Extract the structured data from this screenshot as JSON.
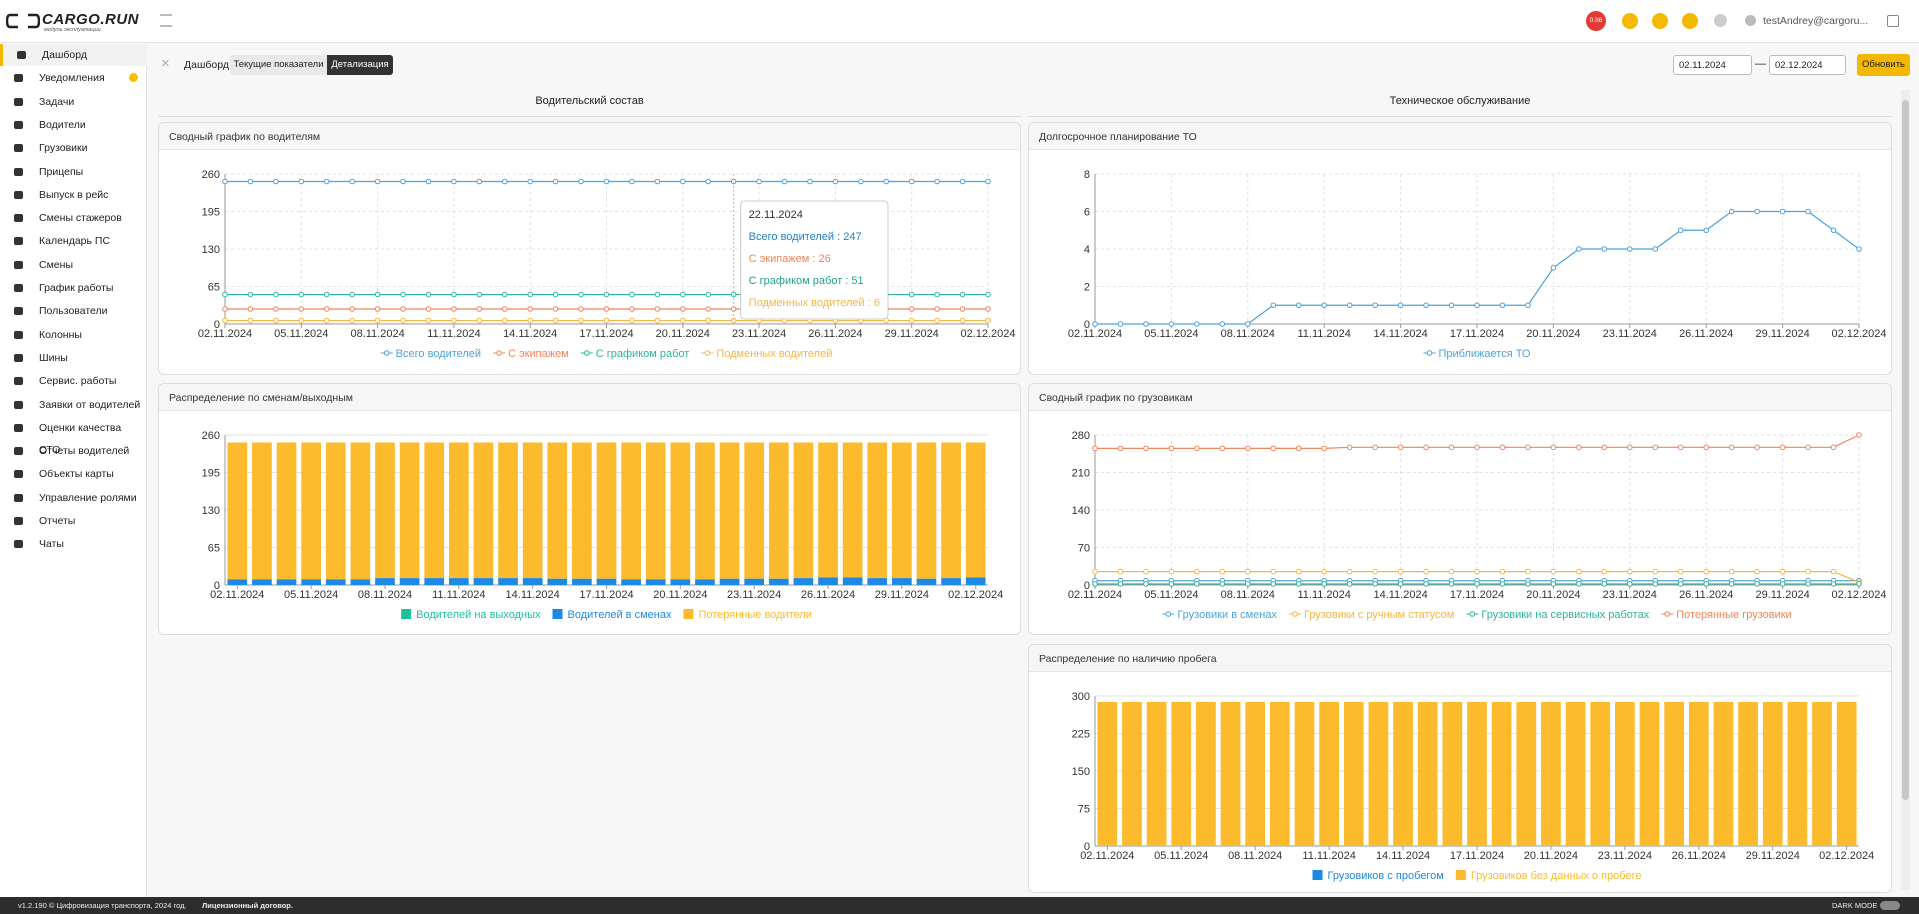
{
  "header": {
    "logo": "CARGO.RUN",
    "logo_sub": "модуль эксплуатации",
    "badge": "0.86",
    "user": "testAndrey@cargoru..."
  },
  "sidebar": {
    "items": [
      "Дашборд",
      "Уведомления",
      "Задачи",
      "Водители",
      "Грузовики",
      "Прицепы",
      "Выпуск в рейс",
      "Смены стажеров",
      "Календарь ПС",
      "Смены",
      "График работы",
      "Пользователи",
      "Колонны",
      "Шины",
      "Сервис. работы",
      "Заявки от водителей",
      "Оценки качества СТО",
      "Отчеты водителей",
      "Объекты карты",
      "Управление ролями",
      "Отчеты",
      "Чаты"
    ]
  },
  "toolbar": {
    "breadcrumb": "Дашборд",
    "tabs": [
      "Текущие показатели",
      "Детализация"
    ],
    "date_from": "02.11.2024",
    "date_sep": "—",
    "date_to": "02.12.2024",
    "button": "Обновить"
  },
  "sections": [
    "Водительский состав",
    "Техническое обслуживание"
  ],
  "charts": [
    {
      "type": "line",
      "title": "Сводный график по водителям",
      "categories": [
        "02.11.2024",
        null,
        null,
        "05.11.2024",
        null,
        null,
        "08.11.2024",
        null,
        null,
        "11.11.2024",
        null,
        null,
        "14.11.2024",
        null,
        null,
        "17.11.2024",
        null,
        null,
        "20.11.2024",
        null,
        null,
        "23.11.2024",
        null,
        null,
        "26.11.2024",
        null,
        null,
        "29.11.2024",
        null,
        null,
        "02.12.2024"
      ],
      "ylim": [
        0,
        260
      ],
      "yticks": [
        0,
        65,
        130,
        195,
        260
      ],
      "grid": true,
      "series": [
        {
          "name": "Всего водителей",
          "color": "#4da3dc",
          "values": [
            247,
            247,
            247,
            247,
            247,
            247,
            247,
            247,
            247,
            247,
            247,
            247,
            247,
            247,
            247,
            247,
            247,
            247,
            247,
            247,
            247,
            247,
            247,
            247,
            247,
            247,
            247,
            247,
            247,
            247,
            247
          ]
        },
        {
          "name": "С экипажем",
          "color": "#f0845a",
          "values": [
            26,
            26,
            26,
            26,
            26,
            26,
            26,
            26,
            26,
            26,
            26,
            26,
            26,
            26,
            26,
            26,
            26,
            26,
            26,
            26,
            26,
            26,
            26,
            26,
            26,
            26,
            26,
            26,
            26,
            26,
            26
          ]
        },
        {
          "name": "С графиком работ",
          "color": "#2bb597",
          "values": [
            51,
            51,
            51,
            51,
            51,
            51,
            51,
            51,
            51,
            51,
            51,
            51,
            51,
            51,
            51,
            51,
            51,
            51,
            51,
            51,
            51,
            51,
            51,
            51,
            51,
            51,
            51,
            51,
            51,
            51,
            51
          ]
        },
        {
          "name": "Подменных водителей",
          "color": "#f5b642",
          "values": [
            6,
            6,
            6,
            6,
            6,
            6,
            6,
            6,
            6,
            6,
            6,
            6,
            6,
            6,
            6,
            6,
            6,
            6,
            6,
            6,
            6,
            6,
            6,
            6,
            6,
            6,
            6,
            6,
            6,
            6,
            6
          ]
        }
      ],
      "tooltip": {
        "date": "22.11.2024",
        "lines": [
          {
            "text": "Всего водителей : 247",
            "color": "#1e7fc9"
          },
          {
            "text": "С экипажем : 26",
            "color": "#f0845a"
          },
          {
            "text": "С графиком работ : 51",
            "color": "#22a488"
          },
          {
            "text": "Подменных водителей : 6",
            "color": "#f5b642"
          }
        ]
      }
    },
    {
      "type": "line",
      "title": "Долгосрочное планирование ТО",
      "categories": [
        "02.11.2024",
        null,
        null,
        "05.11.2024",
        null,
        null,
        "08.11.2024",
        null,
        null,
        "11.11.2024",
        null,
        null,
        "14.11.2024",
        null,
        null,
        "17.11.2024",
        null,
        null,
        "20.11.2024",
        null,
        null,
        "23.11.2024",
        null,
        null,
        "26.11.2024",
        null,
        null,
        "29.11.2024",
        null,
        null,
        "02.12.2024"
      ],
      "ylim": [
        0,
        8
      ],
      "yticks": [
        0,
        2,
        4,
        6,
        8
      ],
      "grid": true,
      "series": [
        {
          "name": "Приближается ТО",
          "color": "#4da3dc",
          "values": [
            0,
            0,
            0,
            0,
            0,
            0,
            0,
            1,
            1,
            1,
            1,
            1,
            1,
            1,
            1,
            1,
            1,
            1,
            3,
            4,
            4,
            4,
            4,
            5,
            5,
            6,
            6,
            6,
            6,
            5,
            4
          ]
        }
      ]
    },
    {
      "type": "stacked_bar",
      "title": "Распределение по сменам/выходным",
      "categories": [
        "02.11.2024",
        null,
        null,
        "05.11.2024",
        null,
        null,
        "08.11.2024",
        null,
        null,
        "11.11.2024",
        null,
        null,
        "14.11.2024",
        null,
        null,
        "17.11.2024",
        null,
        null,
        "20.11.2024",
        null,
        null,
        "23.11.2024",
        null,
        null,
        "26.11.2024",
        null,
        null,
        "29.11.2024",
        null,
        null,
        "02.12.2024"
      ],
      "ylim": [
        0,
        260
      ],
      "yticks": [
        0,
        65,
        130,
        195,
        260
      ],
      "grid": true,
      "series": [
        {
          "name": "Водителей на выходных",
          "color": "#1fbf9c",
          "values": [
            0,
            0,
            0,
            0,
            0,
            0,
            0,
            0,
            0,
            0,
            0,
            0,
            0,
            0,
            0,
            0,
            0,
            0,
            0,
            0,
            0,
            0,
            0,
            0,
            0,
            0,
            0,
            0,
            0,
            0,
            0
          ]
        },
        {
          "name": "Водителей в сменах",
          "color": "#1e88e5",
          "values": [
            10,
            10,
            10,
            10,
            10,
            10,
            12,
            12,
            12,
            12,
            12,
            12,
            12,
            11,
            11,
            11,
            10,
            10,
            10,
            10,
            11,
            11,
            11,
            12,
            13,
            13,
            12,
            12,
            11,
            12,
            13
          ]
        },
        {
          "name": "Потерянные водители",
          "color": "#fbbb2c",
          "values": [
            237,
            237,
            237,
            237,
            237,
            237,
            235,
            235,
            235,
            235,
            235,
            235,
            235,
            236,
            236,
            236,
            237,
            237,
            237,
            237,
            236,
            236,
            236,
            235,
            234,
            234,
            235,
            235,
            236,
            235,
            234
          ]
        }
      ]
    },
    {
      "type": "line",
      "title": "Сводный график по грузовикам",
      "categories": [
        "02.11.2024",
        null,
        null,
        "05.11.2024",
        null,
        null,
        "08.11.2024",
        null,
        null,
        "11.11.2024",
        null,
        null,
        "14.11.2024",
        null,
        null,
        "17.11.2024",
        null,
        null,
        "20.11.2024",
        null,
        null,
        "23.11.2024",
        null,
        null,
        "26.11.2024",
        null,
        null,
        "29.11.2024",
        null,
        null,
        "02.12.2024"
      ],
      "ylim": [
        0,
        280
      ],
      "yticks": [
        0,
        70,
        140,
        210,
        280
      ],
      "grid": true,
      "series": [
        {
          "name": "Грузовики в сменах",
          "color": "#4da3dc",
          "values": [
            8,
            8,
            8,
            8,
            8,
            8,
            8,
            8,
            8,
            8,
            8,
            8,
            8,
            8,
            8,
            8,
            8,
            8,
            8,
            8,
            8,
            8,
            8,
            8,
            8,
            8,
            8,
            8,
            8,
            8,
            8
          ]
        },
        {
          "name": "Грузовики с ручным статусом",
          "color": "#f5b642",
          "values": [
            25,
            25,
            25,
            25,
            25,
            25,
            25,
            25,
            25,
            25,
            25,
            25,
            25,
            25,
            25,
            25,
            25,
            25,
            25,
            25,
            25,
            25,
            25,
            25,
            25,
            25,
            25,
            25,
            25,
            25,
            5
          ]
        },
        {
          "name": "Грузовики на сервисных работах",
          "color": "#2bb597",
          "values": [
            2,
            2,
            2,
            2,
            2,
            2,
            2,
            2,
            2,
            2,
            2,
            2,
            2,
            2,
            2,
            2,
            2,
            2,
            2,
            2,
            2,
            2,
            2,
            2,
            2,
            2,
            2,
            2,
            2,
            2,
            2
          ]
        },
        {
          "name": "Потерянные грузовики",
          "color": "#f0845a",
          "values": [
            255,
            255,
            255,
            255,
            255,
            255,
            255,
            255,
            255,
            255,
            257,
            257,
            257,
            257,
            257,
            257,
            257,
            257,
            257,
            257,
            257,
            257,
            257,
            257,
            257,
            257,
            257,
            257,
            257,
            257,
            280
          ]
        }
      ]
    },
    {
      "type": "stacked_bar",
      "title": "Распределение по наличию пробега",
      "categories": [
        "02.11.2024",
        null,
        null,
        "05.11.2024",
        null,
        null,
        "08.11.2024",
        null,
        null,
        "11.11.2024",
        null,
        null,
        "14.11.2024",
        null,
        null,
        "17.11.2024",
        null,
        null,
        "20.11.2024",
        null,
        null,
        "23.11.2024",
        null,
        null,
        "26.11.2024",
        null,
        null,
        "29.11.2024",
        null,
        null,
        "02.12.2024"
      ],
      "ylim": [
        0,
        300
      ],
      "yticks": [
        0,
        75,
        150,
        225,
        300
      ],
      "grid": true,
      "series": [
        {
          "name": "Грузовиков с пробегом",
          "color": "#1e88e5",
          "values": [
            0,
            0,
            0,
            0,
            0,
            0,
            0,
            0,
            0,
            0,
            0,
            0,
            0,
            0,
            0,
            0,
            0,
            0,
            0,
            0,
            0,
            0,
            0,
            0,
            0,
            0,
            0,
            0,
            0,
            0,
            0
          ]
        },
        {
          "name": "Грузовиков без данных о пробеге",
          "color": "#fbbb2c",
          "values": [
            288,
            288,
            288,
            288,
            288,
            288,
            288,
            288,
            288,
            288,
            288,
            288,
            288,
            288,
            288,
            288,
            288,
            288,
            288,
            288,
            288,
            288,
            288,
            288,
            288,
            288,
            288,
            288,
            288,
            288,
            288
          ]
        }
      ]
    }
  ],
  "footer": {
    "text": "v1.2.190 © Цифровизация транспорта, 2024 год.",
    "link": "Лицензионный договор.",
    "dark_mode": "DARK MODE"
  }
}
